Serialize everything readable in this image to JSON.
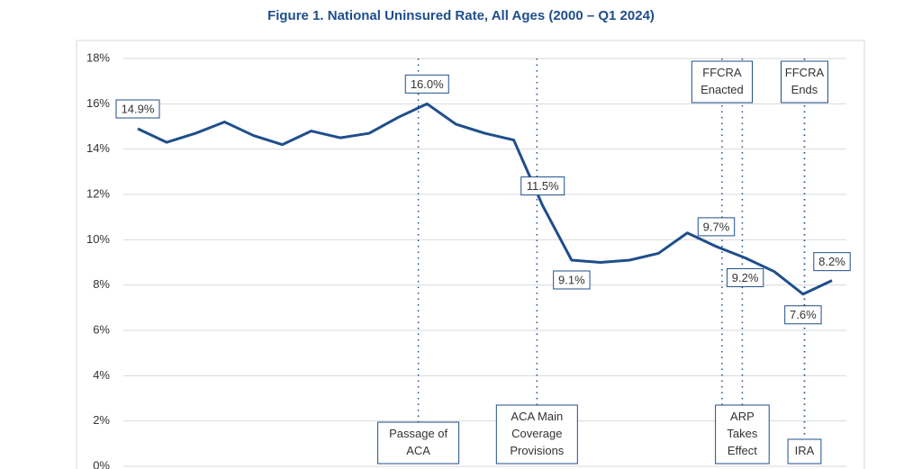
{
  "chart_data": {
    "type": "line",
    "title": "Figure 1. National Uninsured Rate, All Ages (2000 – Q1 2024)",
    "categories": [
      null,
      null,
      null,
      null,
      null,
      null,
      null,
      null,
      null,
      null,
      null,
      null,
      null,
      null,
      null,
      null,
      null,
      null,
      null,
      null,
      null,
      null,
      null,
      null,
      null
    ],
    "series": [
      {
        "name": "National Uninsured Rate",
        "color": "#1f4e8c",
        "values": [
          14.9,
          14.3,
          14.7,
          15.2,
          14.6,
          14.2,
          14.8,
          14.5,
          14.7,
          15.4,
          16.0,
          15.1,
          14.7,
          14.4,
          11.5,
          9.1,
          9.0,
          9.1,
          9.4,
          10.3,
          9.7,
          9.2,
          8.6,
          7.6,
          8.2
        ],
        "value_labels": [
          "14.9%",
          null,
          null,
          null,
          null,
          null,
          null,
          null,
          null,
          null,
          "16.0%",
          null,
          null,
          null,
          "11.5%",
          "9.1%",
          null,
          null,
          null,
          null,
          "9.7%",
          "9.2%",
          null,
          "7.6%",
          "8.2%"
        ]
      }
    ],
    "ylim": [
      0,
      18
    ],
    "yticks": [
      {
        "value": 0,
        "label": "0%"
      },
      {
        "value": 2,
        "label": "2%"
      },
      {
        "value": 4,
        "label": "4%"
      },
      {
        "value": 6,
        "label": "6%"
      },
      {
        "value": 8,
        "label": "8%"
      },
      {
        "value": 10,
        "label": "10%"
      },
      {
        "value": 12,
        "label": "12%"
      },
      {
        "value": 14,
        "label": "14%"
      },
      {
        "value": 16,
        "label": "16%"
      },
      {
        "value": 18,
        "label": "18%"
      }
    ],
    "grid": true,
    "annotations": [
      {
        "x": 9.7,
        "position": "bottom",
        "lines": [
          "Passage of",
          "ACA"
        ]
      },
      {
        "x": 13.8,
        "position": "bottom",
        "lines": [
          "ACA Main",
          "Coverage",
          "Provisions"
        ]
      },
      {
        "x": 20.2,
        "position": "top",
        "lines": [
          "FFCRA",
          "Enacted"
        ]
      },
      {
        "x": 20.9,
        "position": "bottom",
        "lines": [
          "ARP",
          "Takes",
          "Effect"
        ]
      },
      {
        "x": 23.05,
        "position": "top",
        "lines": [
          "FFCRA",
          "Ends"
        ]
      },
      {
        "x": 23.05,
        "position": "bottom",
        "lines": [
          "IRA"
        ]
      }
    ]
  }
}
